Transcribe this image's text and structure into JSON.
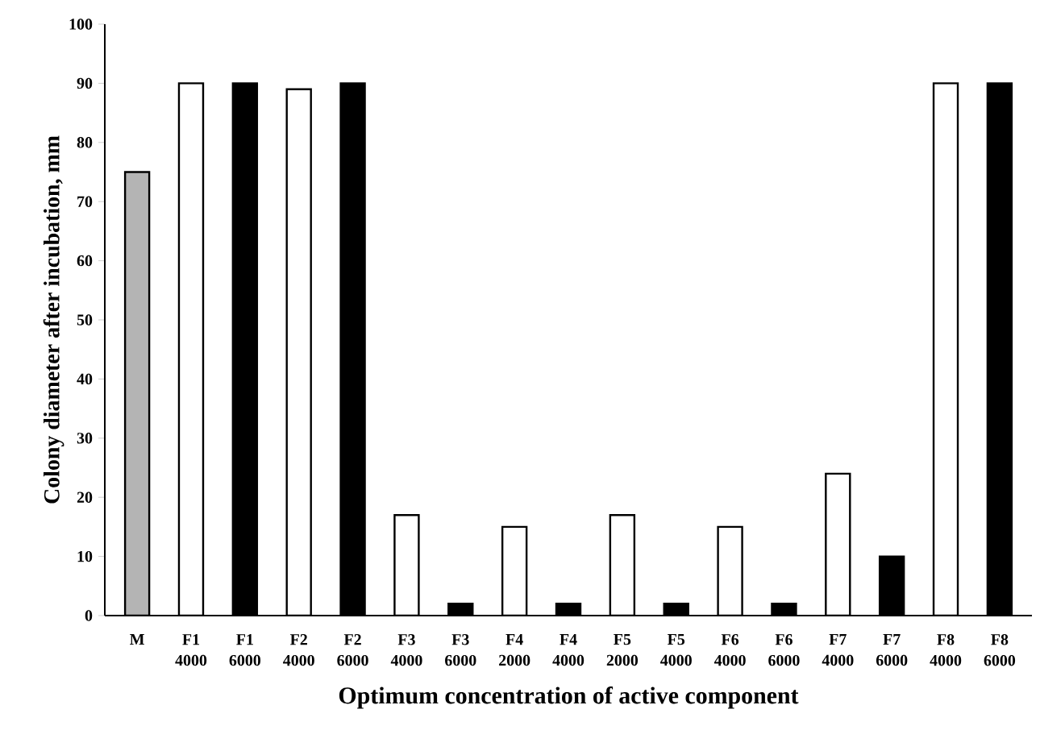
{
  "chart_data": {
    "type": "bar",
    "xlabel": "Optimum concentration of active component",
    "ylabel": "Colony diameter  after incubation, mm",
    "categories": [
      "M",
      "F1 4000",
      "F1 6000",
      "F2 4000",
      "F2 6000",
      "F3 4000",
      "F3 6000",
      "F4 2000",
      "F4 4000",
      "F5 2000",
      "F5 4000",
      "F6 4000",
      "F6 6000",
      "F7 4000",
      "F7 6000",
      "F8 4000",
      "F8 6000"
    ],
    "values": [
      75,
      90,
      90,
      89,
      90,
      17,
      2,
      15,
      2,
      17,
      2,
      15,
      2,
      24,
      10,
      90,
      90
    ],
    "colors": [
      "#b4b4b4",
      "#ffffff",
      "#000000",
      "#ffffff",
      "#000000",
      "#ffffff",
      "#000000",
      "#ffffff",
      "#000000",
      "#ffffff",
      "#000000",
      "#ffffff",
      "#000000",
      "#ffffff",
      "#000000",
      "#ffffff",
      "#000000"
    ],
    "ylim": [
      0,
      100
    ],
    "yticks": [
      0,
      10,
      20,
      30,
      40,
      50,
      60,
      70,
      80,
      90,
      100
    ]
  }
}
